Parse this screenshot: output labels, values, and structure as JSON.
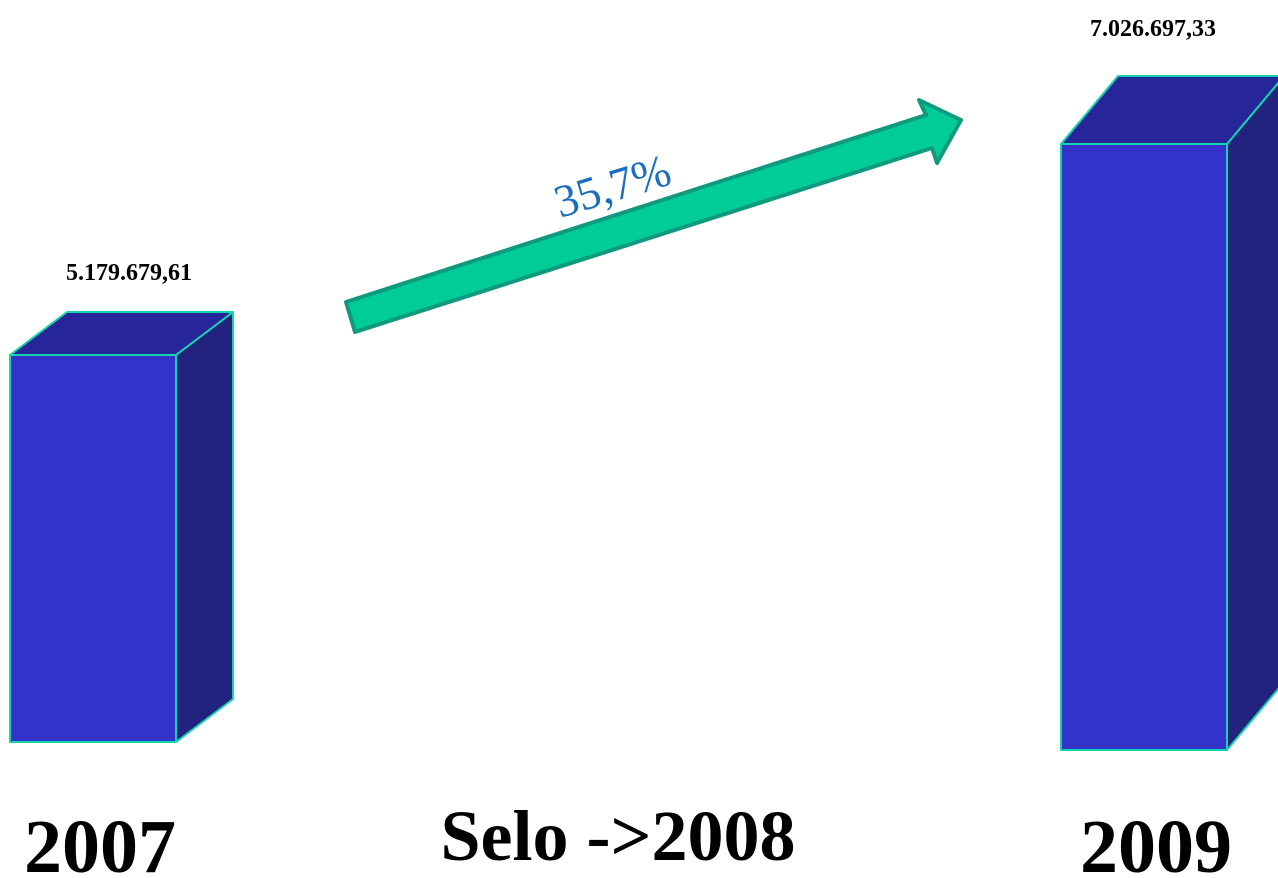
{
  "chart_data": {
    "type": "bar",
    "categories": [
      "2007",
      "2009"
    ],
    "values": [
      5179679.61,
      7026697.33
    ],
    "value_labels": [
      "5.179.679,61",
      "7.026.697,33"
    ],
    "ylim": [
      0,
      7500000
    ],
    "grid": false,
    "legend": "none",
    "annotation": {
      "growth": "35,7%",
      "center_label": "Selo ->2008"
    }
  },
  "colors": {
    "bar_front": "#3333cc",
    "bar_side": "#22227f",
    "bar_top": "#26269a",
    "bar_edge": "#15d3ad",
    "arrow_fill": "#00cc99",
    "arrow_stroke": "#0f9a7e",
    "growth_text": "#1a6fbf"
  }
}
